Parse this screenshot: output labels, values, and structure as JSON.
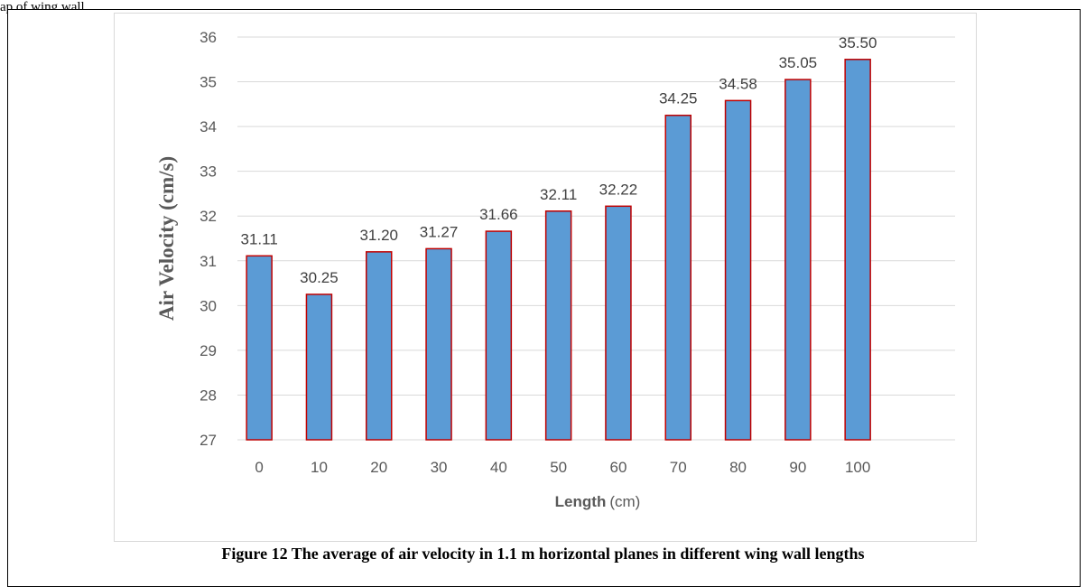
{
  "page": {
    "top_text": "ap of wing wall",
    "caption": "Figure 12 The average of air velocity in 1.1 m horizontal planes in different wing wall lengths"
  },
  "chart_data": {
    "type": "bar",
    "categories": [
      "0",
      "10",
      "20",
      "30",
      "40",
      "50",
      "60",
      "70",
      "80",
      "90",
      "100"
    ],
    "values": [
      31.11,
      30.25,
      31.2,
      31.27,
      31.66,
      32.11,
      32.22,
      34.25,
      34.58,
      35.05,
      35.5
    ],
    "data_labels": [
      "31.11",
      "30.25",
      "31.20",
      "31.27",
      "31.66",
      "32.11",
      "32.22",
      "34.25",
      "34.58",
      "35.05",
      "35.50"
    ],
    "title": "",
    "xlabel": "Length",
    "xlabel_unit": "(cm)",
    "ylabel": "Air Velocity (cm/s)",
    "ylim": [
      27,
      36
    ],
    "yticks": [
      "27",
      "28",
      "29",
      "30",
      "31",
      "32",
      "33",
      "34",
      "35",
      "36"
    ],
    "grid": true,
    "legend": "none",
    "colors": {
      "bar_fill": "#5b9bd5",
      "bar_edge": "#c00000",
      "grid": "#d9d9d9"
    }
  }
}
